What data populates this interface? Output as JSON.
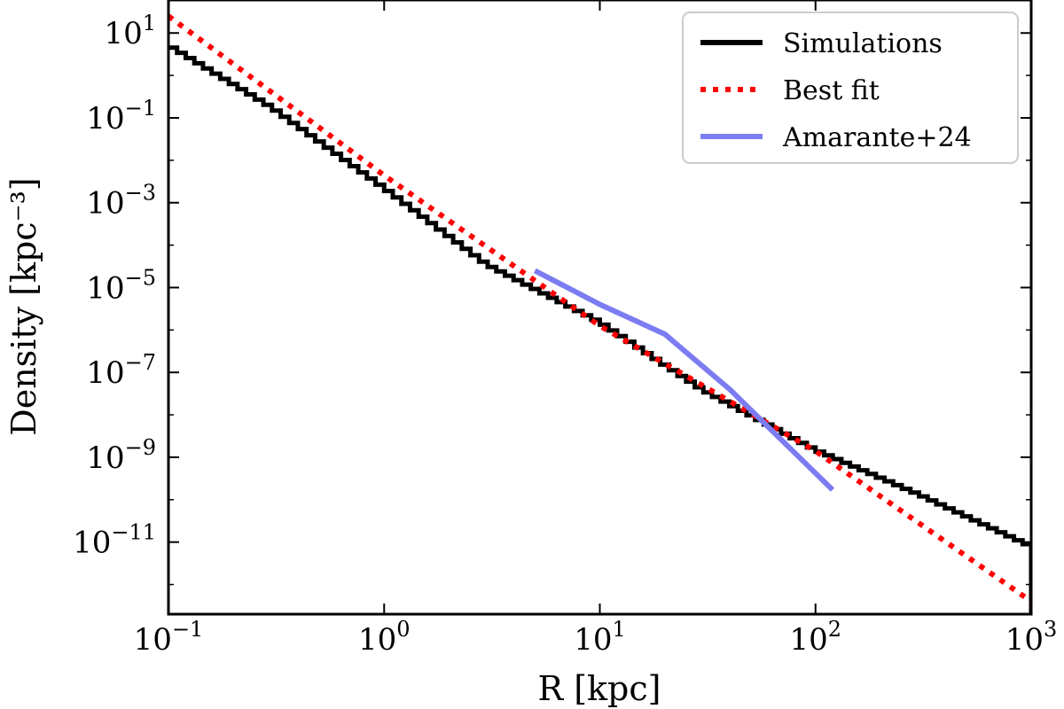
{
  "chart_data": {
    "type": "line",
    "xlabel": "R [kpc]",
    "ylabel": "Density [kpc⁻³]",
    "xscale": "log",
    "yscale": "log",
    "xlim": [
      0.1,
      1000
    ],
    "ylim": [
      2e-13,
      60
    ],
    "grid": false,
    "legend_position": "top-right",
    "x_ticks": [
      {
        "value": 0.1,
        "base": "10",
        "exp": "−1"
      },
      {
        "value": 1,
        "base": "10",
        "exp": "0"
      },
      {
        "value": 10,
        "base": "10",
        "exp": "1"
      },
      {
        "value": 100,
        "base": "10",
        "exp": "2"
      },
      {
        "value": 1000,
        "base": "10",
        "exp": "3"
      }
    ],
    "y_ticks": [
      {
        "value": 10,
        "base": "10",
        "exp": "1"
      },
      {
        "value": 0.1,
        "base": "10",
        "exp": "−1"
      },
      {
        "value": 0.001,
        "base": "10",
        "exp": "−3"
      },
      {
        "value": 1e-05,
        "base": "10",
        "exp": "−5"
      },
      {
        "value": 1e-07,
        "base": "10",
        "exp": "−7"
      },
      {
        "value": 1e-09,
        "base": "10",
        "exp": "−9"
      },
      {
        "value": 1e-11,
        "base": "10",
        "exp": "−11"
      }
    ],
    "series": [
      {
        "name": "Simulations",
        "color": "#000000",
        "style": "step",
        "x": [
          0.1,
          0.3,
          1,
          3,
          10,
          30,
          100,
          300,
          1000
        ],
        "y": [
          5.2,
          0.18,
          0.00225,
          3.5e-05,
          1.55e-06,
          3.9e-08,
          1.5e-09,
          1.35e-10,
          8e-12
        ]
      },
      {
        "name": "Best fit",
        "color": "#ff0000",
        "style": "dotted",
        "x": [
          0.1,
          1,
          10,
          100,
          1000
        ],
        "y": [
          25,
          0.0044,
          1.25e-06,
          1.4e-09,
          4e-13
        ]
      },
      {
        "name": "Amarante+24",
        "color": "#7c7cf2",
        "style": "solid",
        "x": [
          5,
          10,
          20,
          40,
          120
        ],
        "y": [
          2.5e-05,
          4e-06,
          8e-07,
          4e-08,
          1.7e-10
        ]
      }
    ]
  }
}
